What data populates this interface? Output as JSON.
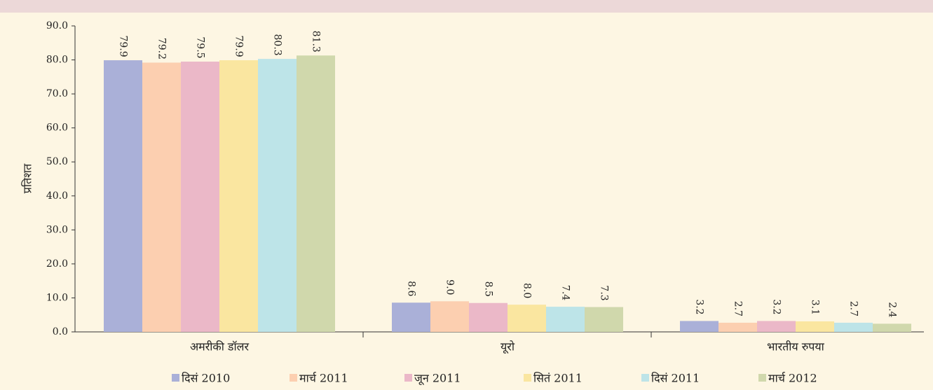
{
  "chart_data": {
    "type": "bar",
    "ylabel": "प्रतिशत",
    "categories": [
      "अमरीकी डॉलर",
      "यूरो",
      "भारतीय रुपया"
    ],
    "series": [
      {
        "name": "दिसं 2010",
        "color": "#aab0d8",
        "values": [
          79.9,
          8.6,
          3.2
        ],
        "value_labels": [
          "79.9",
          "8.6",
          "3.2"
        ]
      },
      {
        "name": "मार्च 2011",
        "color": "#fccfb0",
        "values": [
          79.2,
          9.0,
          2.7
        ],
        "value_labels": [
          "79.2",
          "9.0",
          "2.7"
        ]
      },
      {
        "name": "जून 2011",
        "color": "#ebb8c8",
        "values": [
          79.5,
          8.5,
          3.2
        ],
        "value_labels": [
          "79.5",
          "8.5",
          "3.2"
        ]
      },
      {
        "name": "सितं 2011",
        "color": "#fae6a0",
        "values": [
          79.9,
          8.0,
          3.1
        ],
        "value_labels": [
          "79.9",
          "8.0",
          "3.1"
        ]
      },
      {
        "name": "दिसं 2011",
        "color": "#bde4e8",
        "values": [
          80.3,
          7.4,
          2.7
        ],
        "value_labels": [
          "80.3",
          "7.4",
          "2.7"
        ]
      },
      {
        "name": "मार्च 2012",
        "color": "#d0d8ac",
        "values": [
          81.3,
          7.3,
          2.4
        ],
        "value_labels": [
          "81.3",
          "7.3",
          "2.4"
        ]
      }
    ],
    "ylim": [
      0,
      90
    ],
    "yticks": [
      {
        "value": 0,
        "label": "0.0"
      },
      {
        "value": 10,
        "label": "10.0"
      },
      {
        "value": 20,
        "label": "20.0"
      },
      {
        "value": 30,
        "label": "30.0"
      },
      {
        "value": 40,
        "label": "40.0"
      },
      {
        "value": 50,
        "label": "50.0"
      },
      {
        "value": 60,
        "label": "60.0"
      },
      {
        "value": 70,
        "label": "70.0"
      },
      {
        "value": 80,
        "label": "80.0"
      },
      {
        "value": 90,
        "label": "90.0"
      }
    ],
    "legend": "bottom"
  }
}
